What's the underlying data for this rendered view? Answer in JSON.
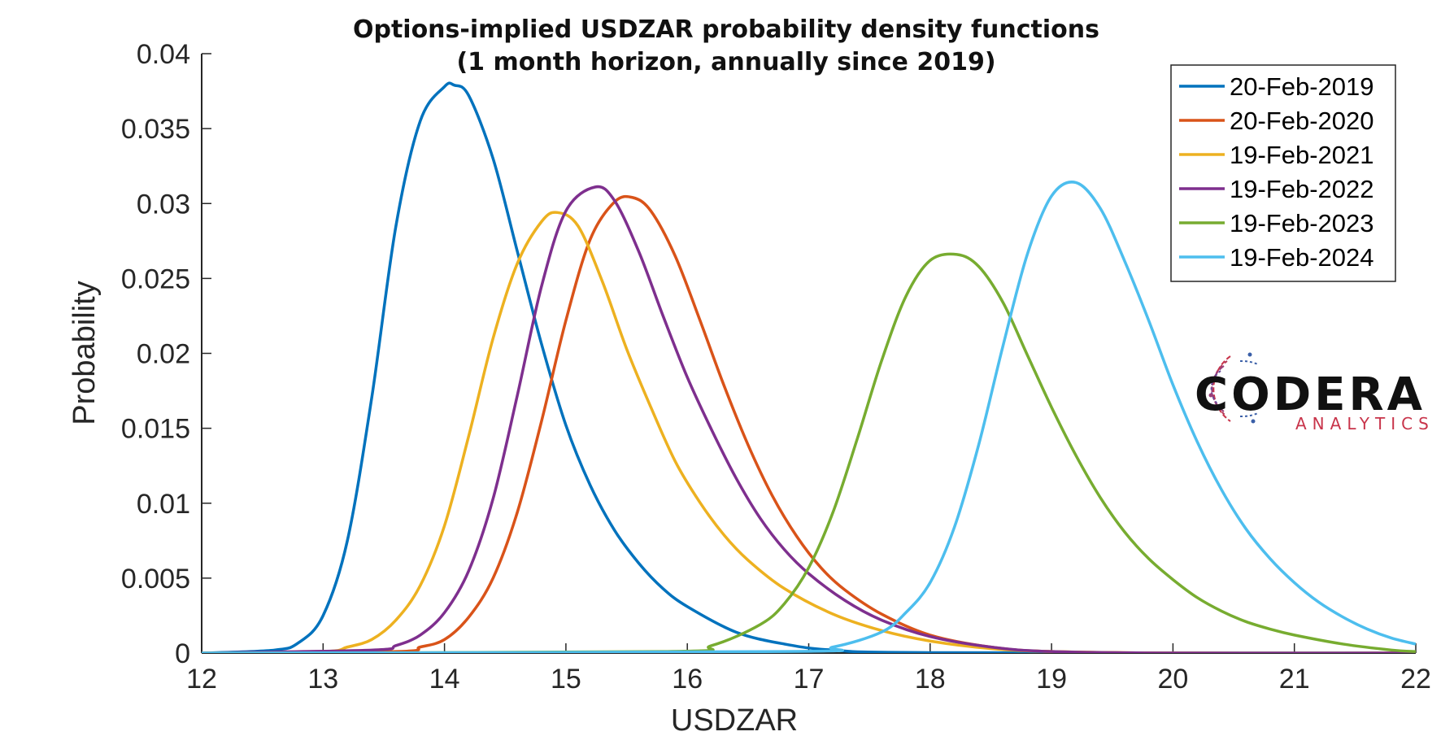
{
  "chart_data": {
    "type": "line",
    "title": [
      "Options-implied USDZAR probability density functions",
      "(1 month horizon, annually since 2019)"
    ],
    "xlabel": "USDZAR",
    "ylabel": "Probability",
    "xlim": [
      12,
      22
    ],
    "ylim": [
      0,
      0.04
    ],
    "xticks": [
      12,
      13,
      14,
      15,
      16,
      17,
      18,
      19,
      20,
      21,
      22
    ],
    "yticks": [
      0,
      0.005,
      0.01,
      0.015,
      0.02,
      0.025,
      0.03,
      0.035,
      0.04
    ],
    "ytick_labels": [
      "0",
      "0.005",
      "0.01",
      "0.015",
      "0.02",
      "0.025",
      "0.03",
      "0.035",
      "0.04"
    ],
    "grid": false,
    "legend_position": "top-right",
    "series": [
      {
        "name": "20-Feb-2019",
        "color": "#0072BD",
        "x": [
          12,
          12.6,
          12.8,
          13.0,
          13.2,
          13.4,
          13.6,
          13.8,
          14.0,
          14.08,
          14.2,
          14.4,
          14.6,
          14.8,
          15.0,
          15.2,
          15.4,
          15.6,
          15.8,
          16.0,
          16.4,
          16.8,
          17.2,
          18.0,
          22
        ],
        "y": [
          0,
          0.0002,
          0.0007,
          0.0025,
          0.0075,
          0.017,
          0.0285,
          0.0355,
          0.0378,
          0.0379,
          0.0372,
          0.033,
          0.0268,
          0.0206,
          0.0152,
          0.0112,
          0.0082,
          0.006,
          0.0043,
          0.0031,
          0.0014,
          0.0006,
          0.0002,
          3e-05,
          0
        ]
      },
      {
        "name": "20-Feb-2020",
        "color": "#D95319",
        "x": [
          12,
          13.6,
          13.8,
          14.0,
          14.2,
          14.4,
          14.6,
          14.8,
          15.0,
          15.2,
          15.4,
          15.55,
          15.7,
          15.9,
          16.1,
          16.3,
          16.5,
          16.7,
          16.9,
          17.1,
          17.3,
          17.6,
          18.0,
          18.5,
          19.0,
          20.0,
          22
        ],
        "y": [
          0,
          0.0001,
          0.0004,
          0.0009,
          0.0024,
          0.005,
          0.0094,
          0.0155,
          0.0222,
          0.0276,
          0.0301,
          0.0304,
          0.0295,
          0.0265,
          0.0223,
          0.0179,
          0.0139,
          0.0105,
          0.0078,
          0.0057,
          0.0042,
          0.0026,
          0.0012,
          0.0004,
          0.0001,
          0,
          0
        ]
      },
      {
        "name": "19-Feb-2021",
        "color": "#EDB120",
        "x": [
          12,
          13.0,
          13.2,
          13.4,
          13.6,
          13.8,
          14.0,
          14.2,
          14.4,
          14.6,
          14.8,
          14.93,
          15.1,
          15.3,
          15.5,
          15.7,
          15.9,
          16.1,
          16.3,
          16.5,
          16.8,
          17.2,
          17.6,
          18.0,
          18.5,
          19.0,
          20.0,
          22
        ],
        "y": [
          0,
          0.0001,
          0.0004,
          0.0009,
          0.0022,
          0.0045,
          0.0085,
          0.0145,
          0.021,
          0.026,
          0.0288,
          0.0294,
          0.0285,
          0.0248,
          0.0203,
          0.0164,
          0.0128,
          0.0101,
          0.0079,
          0.0062,
          0.0043,
          0.0026,
          0.0015,
          0.0008,
          0.0003,
          0.0001,
          0,
          0
        ]
      },
      {
        "name": "19-Feb-2022",
        "color": "#7E2F8E",
        "x": [
          12,
          13.4,
          13.6,
          13.8,
          14.0,
          14.2,
          14.4,
          14.6,
          14.8,
          15.0,
          15.24,
          15.4,
          15.6,
          15.8,
          16.0,
          16.2,
          16.4,
          16.6,
          16.8,
          17.0,
          17.3,
          17.6,
          18.0,
          18.5,
          19.0,
          20.0,
          22
        ],
        "y": [
          0,
          0.0002,
          0.0005,
          0.0012,
          0.0027,
          0.0055,
          0.0103,
          0.0172,
          0.0245,
          0.0295,
          0.0311,
          0.0302,
          0.0268,
          0.0225,
          0.0184,
          0.0149,
          0.0117,
          0.009,
          0.0069,
          0.0053,
          0.0035,
          0.0022,
          0.0011,
          0.0004,
          0.0001,
          0,
          0
        ]
      },
      {
        "name": "19-Feb-2023",
        "color": "#77AC30",
        "x": [
          12,
          15.8,
          16.2,
          16.6,
          16.8,
          17.0,
          17.2,
          17.4,
          17.6,
          17.8,
          18.0,
          18.22,
          18.4,
          18.6,
          18.8,
          19.0,
          19.2,
          19.4,
          19.6,
          19.8,
          20.0,
          20.2,
          20.4,
          20.6,
          20.8,
          21.0,
          21.4,
          21.8,
          22
        ],
        "y": [
          0,
          0.0001,
          0.0005,
          0.0019,
          0.0033,
          0.0057,
          0.0094,
          0.0143,
          0.0195,
          0.0238,
          0.0262,
          0.0266,
          0.0258,
          0.0234,
          0.0199,
          0.0164,
          0.0132,
          0.0104,
          0.0081,
          0.0063,
          0.0049,
          0.0037,
          0.0028,
          0.0021,
          0.0016,
          0.0012,
          0.0006,
          0.0002,
          0.0001
        ]
      },
      {
        "name": "19-Feb-2024",
        "color": "#4DBEEE",
        "x": [
          12,
          16.8,
          17.2,
          17.6,
          17.8,
          18.0,
          18.2,
          18.4,
          18.6,
          18.8,
          19.0,
          19.2,
          19.4,
          19.6,
          19.8,
          20.0,
          20.2,
          20.4,
          20.6,
          20.8,
          21.0,
          21.2,
          21.4,
          21.6,
          21.8,
          22
        ],
        "y": [
          0,
          0.0001,
          0.0004,
          0.0014,
          0.0027,
          0.0047,
          0.0084,
          0.0139,
          0.0205,
          0.0266,
          0.0305,
          0.0314,
          0.0297,
          0.0262,
          0.0222,
          0.0179,
          0.0141,
          0.0109,
          0.0083,
          0.0063,
          0.0047,
          0.0034,
          0.0024,
          0.0016,
          0.001,
          0.0006
        ]
      }
    ]
  },
  "logo": {
    "name": "CODERA",
    "subtitle": "ANALYTICS",
    "red": "#c8344a",
    "blue": "#3a5fa8"
  }
}
